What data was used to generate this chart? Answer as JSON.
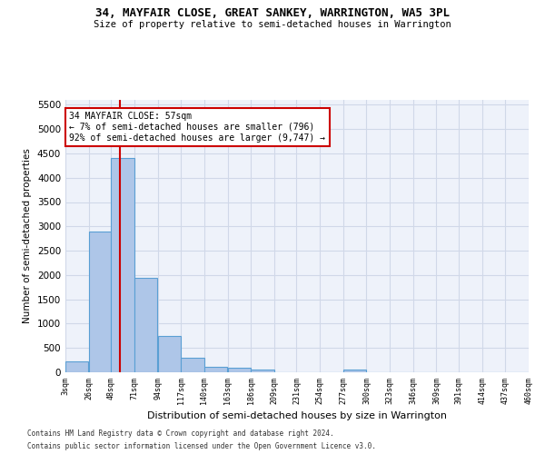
{
  "title1": "34, MAYFAIR CLOSE, GREAT SANKEY, WARRINGTON, WA5 3PL",
  "title2": "Size of property relative to semi-detached houses in Warrington",
  "xlabel": "Distribution of semi-detached houses by size in Warrington",
  "ylabel": "Number of semi-detached properties",
  "footnote1": "Contains HM Land Registry data © Crown copyright and database right 2024.",
  "footnote2": "Contains public sector information licensed under the Open Government Licence v3.0.",
  "annotation_title": "34 MAYFAIR CLOSE: 57sqm",
  "annotation_line1": "← 7% of semi-detached houses are smaller (796)",
  "annotation_line2": "92% of semi-detached houses are larger (9,747) →",
  "property_size": 57,
  "bar_edges": [
    3,
    26,
    48,
    71,
    94,
    117,
    140,
    163,
    186,
    209,
    231,
    254,
    277,
    300,
    323,
    346,
    369,
    391,
    414,
    437,
    460
  ],
  "bar_heights": [
    220,
    2900,
    4400,
    1950,
    740,
    290,
    115,
    95,
    55,
    0,
    0,
    0,
    55,
    0,
    0,
    0,
    0,
    0,
    0,
    0
  ],
  "bar_color": "#aec6e8",
  "bar_edge_color": "#5a9fd4",
  "vline_color": "#cc0000",
  "annotation_box_color": "#cc0000",
  "grid_color": "#d0d8e8",
  "background_color": "#eef2fa",
  "ylim": [
    0,
    5600
  ],
  "yticks": [
    0,
    500,
    1000,
    1500,
    2000,
    2500,
    3000,
    3500,
    4000,
    4500,
    5000,
    5500
  ],
  "tick_labels": [
    "3sqm",
    "26sqm",
    "48sqm",
    "71sqm",
    "94sqm",
    "117sqm",
    "140sqm",
    "163sqm",
    "186sqm",
    "209sqm",
    "231sqm",
    "254sqm",
    "277sqm",
    "300sqm",
    "323sqm",
    "346sqm",
    "369sqm",
    "391sqm",
    "414sqm",
    "437sqm",
    "460sqm"
  ]
}
